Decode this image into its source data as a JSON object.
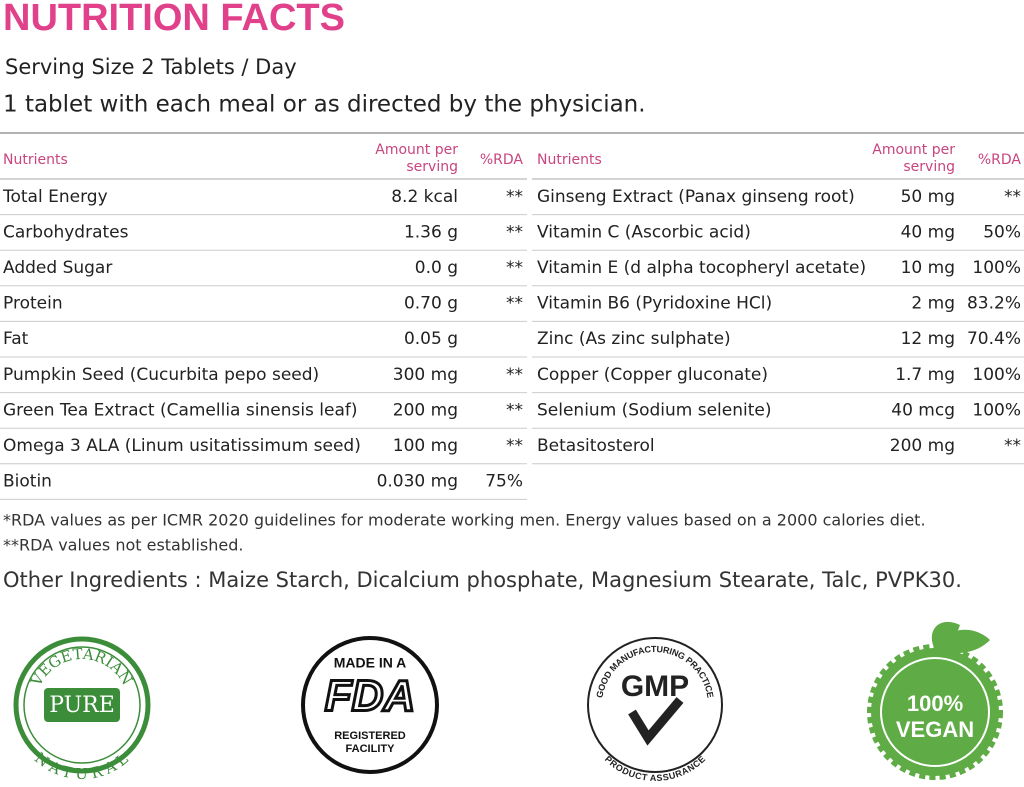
{
  "header": {
    "title": "NUTRITION FACTS",
    "serving": "Serving Size 2 Tablets / Day",
    "directions": "1 tablet with each meal or as directed by the physician."
  },
  "tables": [
    {
      "columns": {
        "nutrient": "Nutrients",
        "amount": [
          "Amount per",
          "serving"
        ],
        "rda": "%RDA"
      },
      "rows": [
        [
          "Total Energy",
          "8.2 kcal",
          "**"
        ],
        [
          "Carbohydrates",
          "1.36 g",
          "**"
        ],
        [
          "Added Sugar",
          "0.0 g",
          "**"
        ],
        [
          "Protein",
          "0.70 g",
          "**"
        ],
        [
          "Fat",
          "0.05 g",
          null
        ],
        [
          "Pumpkin Seed (Cucurbita pepo seed)",
          "300 mg",
          "**"
        ],
        [
          "Green Tea Extract (Camellia sinensis leaf)",
          "200 mg",
          "**"
        ],
        [
          "Omega 3 ALA (Linum usitatissimum seed)",
          "100 mg",
          "**"
        ],
        [
          "Biotin",
          "0.030 mg",
          "75%"
        ]
      ]
    },
    {
      "columns": {
        "nutrient": "Nutrients",
        "amount": [
          "Amount per",
          "serving"
        ],
        "rda": "%RDA"
      },
      "rows": [
        [
          "Ginseng Extract (Panax ginseng root)",
          "50 mg",
          "**"
        ],
        [
          "Vitamin C (Ascorbic acid)",
          "40 mg",
          "50%"
        ],
        [
          "Vitamin E (d alpha tocopheryl acetate)",
          "10 mg",
          "100%"
        ],
        [
          "Vitamin B6 (Pyridoxine HCl)",
          "2 mg",
          "83.2%"
        ],
        [
          "Zinc (As zinc sulphate)",
          "12 mg",
          "70.4%"
        ],
        [
          "Copper (Copper gluconate)",
          "1.7 mg",
          "100%"
        ],
        [
          "Selenium (Sodium selenite)",
          "40 mcg",
          "100%"
        ],
        [
          "Betasitosterol",
          "200 mg",
          "**"
        ]
      ]
    }
  ],
  "footnotes": [
    "*RDA values as per ICMR 2020 guidelines for moderate working men. Energy values based on a 2000 calories diet.",
    "**RDA values not established."
  ],
  "other_ingredients": "Other Ingredients : Maize Starch, Dicalcium phosphate, Magnesium Stearate, Talc, PVPK30.",
  "badges": {
    "vegetarian": {
      "top": "VEGETARIAN",
      "center": "PURE",
      "bottom": "NATURAL"
    },
    "fda": {
      "top": "MADE IN A",
      "center": "FDA",
      "bottom": [
        "REGISTERED",
        "FACILITY"
      ]
    },
    "gmp": {
      "top": "GOOD MANUFACTURING PRACTICE",
      "center": "GMP",
      "bottom": "PRODUCT ASSURANCE"
    },
    "vegan": {
      "top": "100%",
      "bottom": "VEGAN"
    }
  }
}
